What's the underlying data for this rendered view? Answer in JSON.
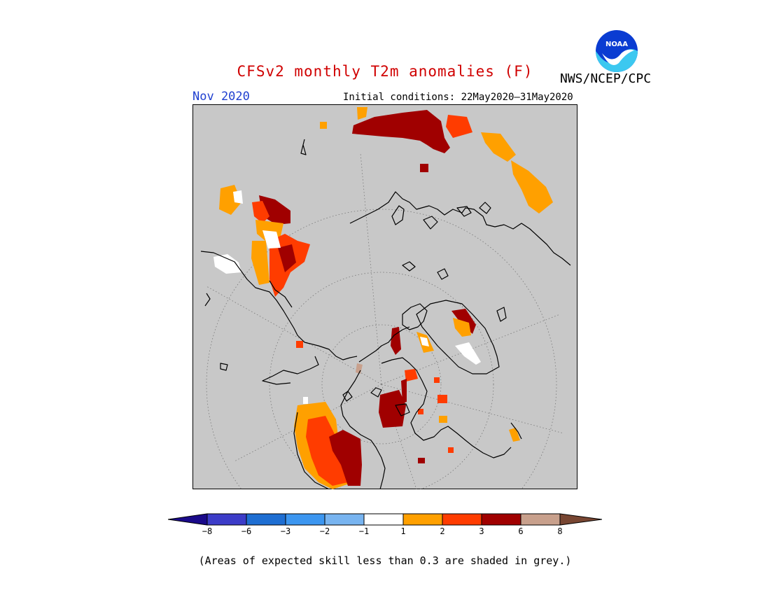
{
  "header": {
    "title": "CFSv2 monthly T2m anomalies (F)",
    "month": "Nov 2020",
    "initial_conditions": "Initial conditions: 22May2020–31May2020",
    "agency": "NWS/NCEP/CPC",
    "logo_text": "NOAA"
  },
  "colorbar": {
    "ticks": [
      "−8",
      "−6",
      "−3",
      "−2",
      "−1",
      "1",
      "2",
      "3",
      "6",
      "8"
    ],
    "colors": [
      "#1a0a8a",
      "#3c3cc8",
      "#1e6ed2",
      "#3c96f0",
      "#78b4f0",
      "#ffffff",
      "#ffa000",
      "#ff3c00",
      "#a00000",
      "#c8a08c",
      "#784632"
    ]
  },
  "footer": {
    "note": "(Areas of expected skill less than 0.3 are shaded in grey.)"
  }
}
